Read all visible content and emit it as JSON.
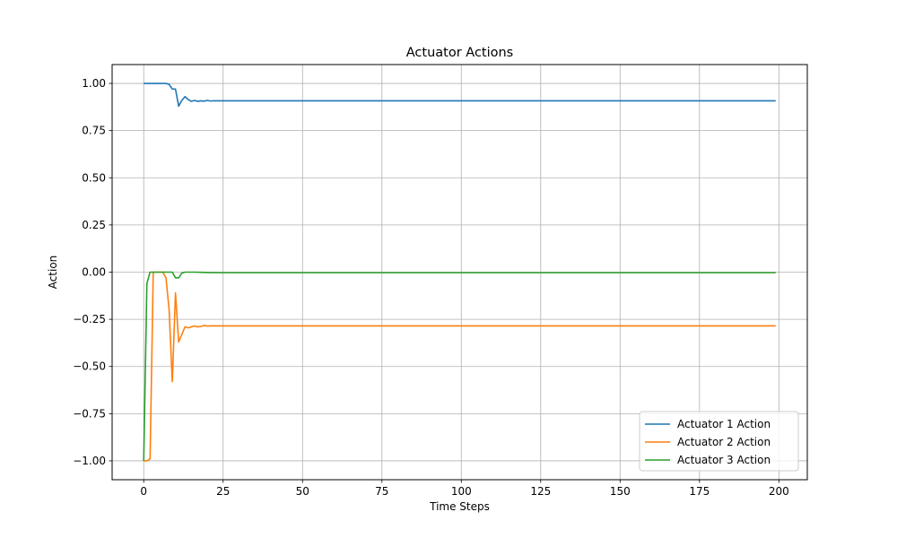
{
  "chart_data": {
    "type": "line",
    "title": "Actuator Actions",
    "xlabel": "Time Steps",
    "ylabel": "Action",
    "xlim": [
      -9.95,
      208.95
    ],
    "ylim": [
      -1.1,
      1.1
    ],
    "xticks": [
      0,
      25,
      50,
      75,
      100,
      125,
      150,
      175,
      200
    ],
    "yticks": [
      1.0,
      0.75,
      0.5,
      0.25,
      0.0,
      -0.25,
      -0.5,
      -0.75,
      -1.0
    ],
    "xtick_labels": [
      "0",
      "25",
      "50",
      "75",
      "100",
      "125",
      "150",
      "175",
      "200"
    ],
    "ytick_labels": [
      "1.00",
      "0.75",
      "0.50",
      "0.25",
      "0.00",
      "−0.25",
      "−0.50",
      "−0.75",
      "−1.00"
    ],
    "grid": true,
    "legend_position": "lower-right",
    "series": [
      {
        "name": "Actuator 1 Action",
        "color": "#1f77b4",
        "points": [
          [
            0,
            1.0
          ],
          [
            1,
            1.0
          ],
          [
            2,
            1.0
          ],
          [
            3,
            1.0
          ],
          [
            4,
            1.0
          ],
          [
            5,
            1.0
          ],
          [
            6,
            1.0
          ],
          [
            7,
            1.0
          ],
          [
            8,
            0.995
          ],
          [
            9,
            0.97
          ],
          [
            10,
            0.97
          ],
          [
            11,
            0.88
          ],
          [
            12,
            0.91
          ],
          [
            13,
            0.93
          ],
          [
            14,
            0.915
          ],
          [
            15,
            0.905
          ],
          [
            16,
            0.91
          ],
          [
            17,
            0.905
          ],
          [
            18,
            0.908
          ],
          [
            19,
            0.906
          ],
          [
            20,
            0.91
          ],
          [
            21,
            0.907
          ],
          [
            22,
            0.908
          ],
          [
            25,
            0.908
          ],
          [
            50,
            0.908
          ],
          [
            100,
            0.908
          ],
          [
            150,
            0.908
          ],
          [
            199,
            0.908
          ]
        ]
      },
      {
        "name": "Actuator 2 Action",
        "color": "#ff7f0e",
        "points": [
          [
            0,
            -1.0
          ],
          [
            1,
            -1.0
          ],
          [
            2,
            -0.99
          ],
          [
            3,
            0.0
          ],
          [
            4,
            0.0
          ],
          [
            5,
            0.0
          ],
          [
            6,
            0.0
          ],
          [
            7,
            -0.03
          ],
          [
            8,
            -0.2
          ],
          [
            9,
            -0.58
          ],
          [
            10,
            -0.11
          ],
          [
            11,
            -0.37
          ],
          [
            12,
            -0.33
          ],
          [
            13,
            -0.29
          ],
          [
            14,
            -0.295
          ],
          [
            15,
            -0.29
          ],
          [
            16,
            -0.285
          ],
          [
            17,
            -0.29
          ],
          [
            18,
            -0.288
          ],
          [
            19,
            -0.282
          ],
          [
            20,
            -0.286
          ],
          [
            21,
            -0.285
          ],
          [
            22,
            -0.285
          ],
          [
            25,
            -0.285
          ],
          [
            50,
            -0.285
          ],
          [
            100,
            -0.285
          ],
          [
            150,
            -0.285
          ],
          [
            199,
            -0.285
          ]
        ]
      },
      {
        "name": "Actuator 3 Action",
        "color": "#2ca02c",
        "points": [
          [
            0,
            -1.0
          ],
          [
            1,
            -0.06
          ],
          [
            2,
            0.0
          ],
          [
            3,
            0.0
          ],
          [
            4,
            0.0
          ],
          [
            5,
            0.0
          ],
          [
            6,
            0.0
          ],
          [
            7,
            0.0
          ],
          [
            8,
            0.0
          ],
          [
            9,
            0.0
          ],
          [
            10,
            -0.03
          ],
          [
            11,
            -0.03
          ],
          [
            12,
            -0.005
          ],
          [
            13,
            0.0
          ],
          [
            14,
            0.0
          ],
          [
            15,
            0.0
          ],
          [
            16,
            0.0
          ],
          [
            18,
            -0.001
          ],
          [
            20,
            -0.002
          ],
          [
            25,
            -0.003
          ],
          [
            50,
            -0.003
          ],
          [
            100,
            -0.003
          ],
          [
            150,
            -0.003
          ],
          [
            199,
            -0.003
          ]
        ]
      }
    ]
  }
}
